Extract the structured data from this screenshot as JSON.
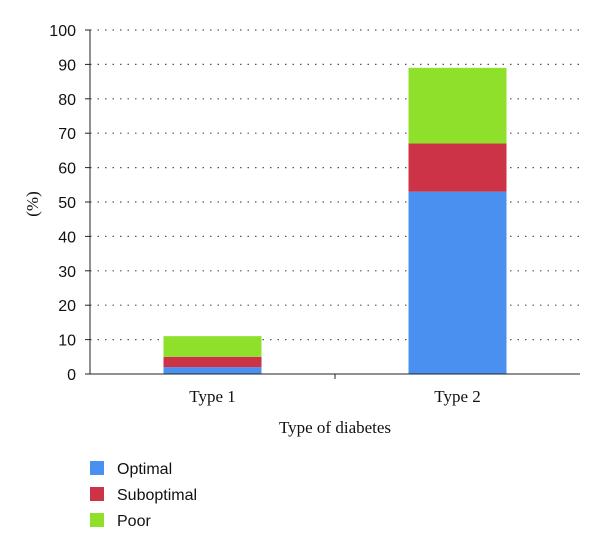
{
  "chart_data": {
    "type": "bar",
    "stacked": true,
    "categories": [
      "Type 1",
      "Type 2"
    ],
    "series": [
      {
        "name": "Optimal",
        "values": [
          2,
          53
        ],
        "color": "#4a90f0"
      },
      {
        "name": "Suboptimal",
        "values": [
          3,
          14
        ],
        "color": "#cc3347"
      },
      {
        "name": "Poor",
        "values": [
          6,
          22
        ],
        "color": "#8ee02a"
      }
    ],
    "title": "",
    "xlabel": "Type of diabetes",
    "ylabel": "(%)",
    "ylim": [
      0,
      100
    ],
    "yticks": [
      0,
      10,
      20,
      30,
      40,
      50,
      60,
      70,
      80,
      90,
      100
    ],
    "grid": "horizontal dotted",
    "legend_placement": "bottom-left"
  }
}
